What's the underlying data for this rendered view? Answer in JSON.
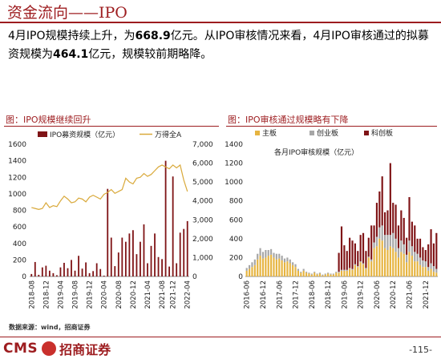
{
  "header": {
    "title": "资金流向——IPO"
  },
  "summary": {
    "part1": "4月IPO规模持续上升，为",
    "value1": "668.9",
    "part2": "亿元。从IPO审核情况来看，4月IPO审核通过的拟募资规模为",
    "value2": "464.1",
    "part3": "亿元，规模较前期略降。"
  },
  "left_panel": {
    "title": "图：IPO规模继续回升"
  },
  "right_panel": {
    "title": "图：IPO审核通过规模略有下降"
  },
  "footer": {
    "source": "数据来源：wind，招商证券",
    "logo_text": "CMS",
    "logo_name": "招商证券",
    "page_number": "-115-"
  },
  "colors": {
    "brand_red": "#9d1c1f",
    "bar_red": "#7f1416",
    "line_gold": "#d9a93a",
    "main_board": "#e6b440",
    "chinext": "#a6a6a6",
    "star": "#7f1416"
  },
  "chart_data": [
    {
      "type": "bar",
      "title": "图：IPO规模继续回升",
      "x_ticks": [
        "2018-08",
        "2018-12",
        "2019-04",
        "2019-08",
        "2019-12",
        "2020-04",
        "2020-08",
        "2020-12",
        "2021-04",
        "2021-08",
        "2021-12",
        "2022-04"
      ],
      "x": [
        "2018-08",
        "2018-09",
        "2018-10",
        "2018-11",
        "2018-12",
        "2019-01",
        "2019-02",
        "2019-03",
        "2019-04",
        "2019-05",
        "2019-06",
        "2019-07",
        "2019-08",
        "2019-09",
        "2019-10",
        "2019-11",
        "2019-12",
        "2020-01",
        "2020-02",
        "2020-03",
        "2020-04",
        "2020-05",
        "2020-06",
        "2020-07",
        "2020-08",
        "2020-09",
        "2020-10",
        "2020-11",
        "2020-12",
        "2021-01",
        "2021-02",
        "2021-03",
        "2021-04",
        "2021-05",
        "2021-06",
        "2021-07",
        "2021-08",
        "2021-09",
        "2021-10",
        "2021-12",
        "2022-01",
        "2022-02",
        "2022-03",
        "2022-04"
      ],
      "ylim_left": [
        0,
        1600
      ],
      "ylim_right": [
        0,
        7000
      ],
      "yticks_left": [
        0,
        200,
        400,
        600,
        800,
        1000,
        1200,
        1400,
        1600
      ],
      "yticks_right": [
        "0",
        "1,000",
        "2,000",
        "3,000",
        "4,000",
        "5,000",
        "6,000",
        "7,000"
      ],
      "series": [
        {
          "name": "IPO募资规模（亿元）",
          "kind": "bar",
          "axis": "left",
          "values": [
            30,
            175,
            20,
            110,
            130,
            70,
            40,
            15,
            110,
            165,
            100,
            200,
            70,
            250,
            95,
            170,
            40,
            65,
            160,
            90,
            10,
            1060,
            470,
            125,
            290,
            470,
            420,
            520,
            560,
            270,
            420,
            630,
            160,
            370,
            520,
            235,
            210,
            1400,
            120,
            1210,
            160,
            530,
            575,
            670
          ]
        },
        {
          "name": "万得全A",
          "kind": "line",
          "axis": "right",
          "values": [
            3650,
            3600,
            3550,
            3600,
            3900,
            3650,
            3750,
            3700,
            4000,
            4250,
            4100,
            3900,
            3950,
            4150,
            4100,
            3950,
            4200,
            4300,
            4200,
            4100,
            4350,
            4450,
            4600,
            4400,
            4500,
            4600,
            5200,
            5000,
            4900,
            5200,
            5250,
            5450,
            5300,
            5400,
            5600,
            5800,
            5900,
            5800,
            5700,
            5900,
            5750,
            5900,
            5100,
            4500
          ]
        }
      ]
    },
    {
      "type": "bar",
      "title": "图：IPO审核通过规模略有下降",
      "subtitle": "各月IPO审核规模（亿元）",
      "stacked": true,
      "x_ticks": [
        "2016-06",
        "2016-12",
        "2017-06",
        "2017-12",
        "2018-06",
        "2018-12",
        "2019-06",
        "2019-12",
        "2020-06",
        "2020-12",
        "2021-06",
        "2021-12"
      ],
      "x": [
        "2016-06",
        "2016-07",
        "2016-08",
        "2016-09",
        "2016-10",
        "2016-11",
        "2016-12",
        "2017-01",
        "2017-02",
        "2017-03",
        "2017-04",
        "2017-05",
        "2017-06",
        "2017-07",
        "2017-08",
        "2017-09",
        "2017-10",
        "2017-11",
        "2017-12",
        "2018-01",
        "2018-02",
        "2018-03",
        "2018-04",
        "2018-05",
        "2018-06",
        "2018-07",
        "2018-08",
        "2018-09",
        "2018-10",
        "2018-11",
        "2018-12",
        "2019-01",
        "2019-02",
        "2019-03",
        "2019-04",
        "2019-05",
        "2019-06",
        "2019-07",
        "2019-08",
        "2019-09",
        "2019-10",
        "2019-11",
        "2019-12",
        "2020-01",
        "2020-02",
        "2020-03",
        "2020-04",
        "2020-05",
        "2020-06",
        "2020-07",
        "2020-08",
        "2020-09",
        "2020-10",
        "2020-11",
        "2020-12",
        "2021-01",
        "2021-02",
        "2021-03",
        "2021-04",
        "2021-05",
        "2021-06",
        "2021-07",
        "2021-08",
        "2021-09",
        "2021-10",
        "2021-11",
        "2021-12",
        "2022-01",
        "2022-02",
        "2022-03",
        "2022-04"
      ],
      "ylim": [
        0,
        1400
      ],
      "yticks": [
        0,
        200,
        400,
        600,
        800,
        1000,
        1200,
        1400
      ],
      "series": [
        {
          "name": "主板",
          "values": [
            60,
            80,
            100,
            120,
            180,
            220,
            190,
            200,
            220,
            230,
            200,
            180,
            190,
            170,
            150,
            160,
            140,
            120,
            100,
            60,
            40,
            60,
            40,
            30,
            20,
            40,
            20,
            30,
            10,
            20,
            30,
            20,
            20,
            40,
            40,
            60,
            60,
            60,
            80,
            70,
            120,
            100,
            150,
            130,
            80,
            200,
            160,
            300,
            320,
            400,
            380,
            300,
            280,
            320,
            300,
            260,
            200,
            260,
            240,
            150,
            260,
            220,
            160,
            160,
            120,
            100,
            100,
            60,
            80,
            50,
            40
          ]
        },
        {
          "name": "创业板",
          "values": [
            30,
            40,
            50,
            60,
            60,
            80,
            70,
            80,
            60,
            60,
            50,
            60,
            50,
            50,
            40,
            40,
            40,
            30,
            30,
            20,
            10,
            20,
            10,
            10,
            10,
            10,
            10,
            10,
            10,
            10,
            10,
            10,
            10,
            10,
            10,
            10,
            10,
            10,
            10,
            10,
            10,
            10,
            10,
            10,
            10,
            10,
            20,
            60,
            100,
            120,
            160,
            140,
            160,
            120,
            160,
            140,
            100,
            120,
            100,
            80,
            120,
            100,
            100,
            80,
            80,
            70,
            60,
            40,
            60,
            60,
            40
          ]
        },
        {
          "name": "科创板",
          "values": [
            0,
            0,
            0,
            0,
            0,
            0,
            0,
            0,
            0,
            0,
            0,
            0,
            0,
            0,
            0,
            0,
            0,
            0,
            0,
            0,
            0,
            0,
            0,
            0,
            0,
            0,
            0,
            0,
            0,
            0,
            0,
            0,
            0,
            0,
            200,
            460,
            260,
            200,
            320,
            300,
            220,
            160,
            280,
            320,
            180,
            200,
            360,
            180,
            360,
            380,
            520,
            240,
            260,
            760,
            320,
            360,
            240,
            320,
            280,
            180,
            460,
            260,
            280,
            160,
            200,
            140,
            120,
            240,
            360,
            240,
            380
          ]
        }
      ]
    }
  ]
}
